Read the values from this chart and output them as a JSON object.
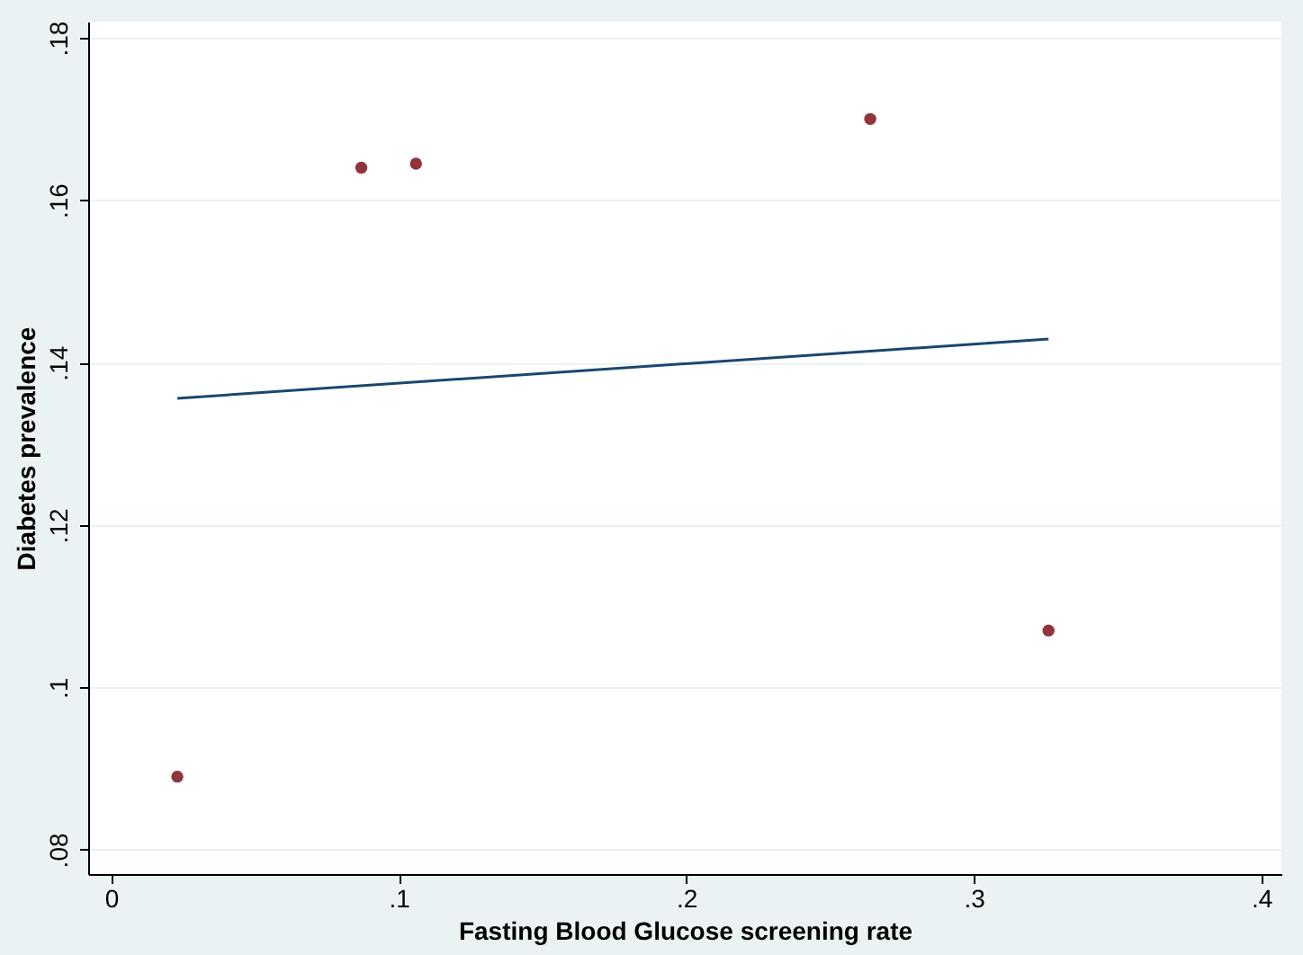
{
  "chart_data": {
    "type": "scatter",
    "xlabel": "Fasting Blood Glucose screening rate",
    "ylabel": "Diabetes prevalence",
    "series": [
      {
        "type": "scatter",
        "color": "#90353b",
        "marker": "circle",
        "x": [
          0.023,
          0.087,
          0.106,
          0.264,
          0.326
        ],
        "values": [
          0.089,
          0.164,
          0.1645,
          0.17,
          0.107
        ]
      },
      {
        "type": "line",
        "color": "#1a476f",
        "line_style": "solid",
        "x": [
          0.023,
          0.326
        ],
        "values": [
          0.1356,
          0.1429
        ]
      }
    ],
    "xlim": [
      -0.008,
      0.407
    ],
    "ylim": [
      0.077,
      0.182
    ],
    "xticks": [
      0,
      {
        "value": 0.1,
        "label": ".1"
      },
      {
        "value": 0.2,
        "label": ".2"
      },
      {
        "value": 0.3,
        "label": ".3"
      },
      {
        "value": 0.4,
        "label": ".4"
      }
    ],
    "yticks": [
      {
        "value": 0.08,
        "label": ".08"
      },
      {
        "value": 0.1,
        "label": ".1"
      },
      {
        "value": 0.12,
        "label": ".12"
      },
      {
        "value": 0.14,
        "label": ".14"
      },
      {
        "value": 0.16,
        "label": ".16"
      },
      {
        "value": 0.18,
        "label": ".18"
      }
    ],
    "grid": "y"
  }
}
